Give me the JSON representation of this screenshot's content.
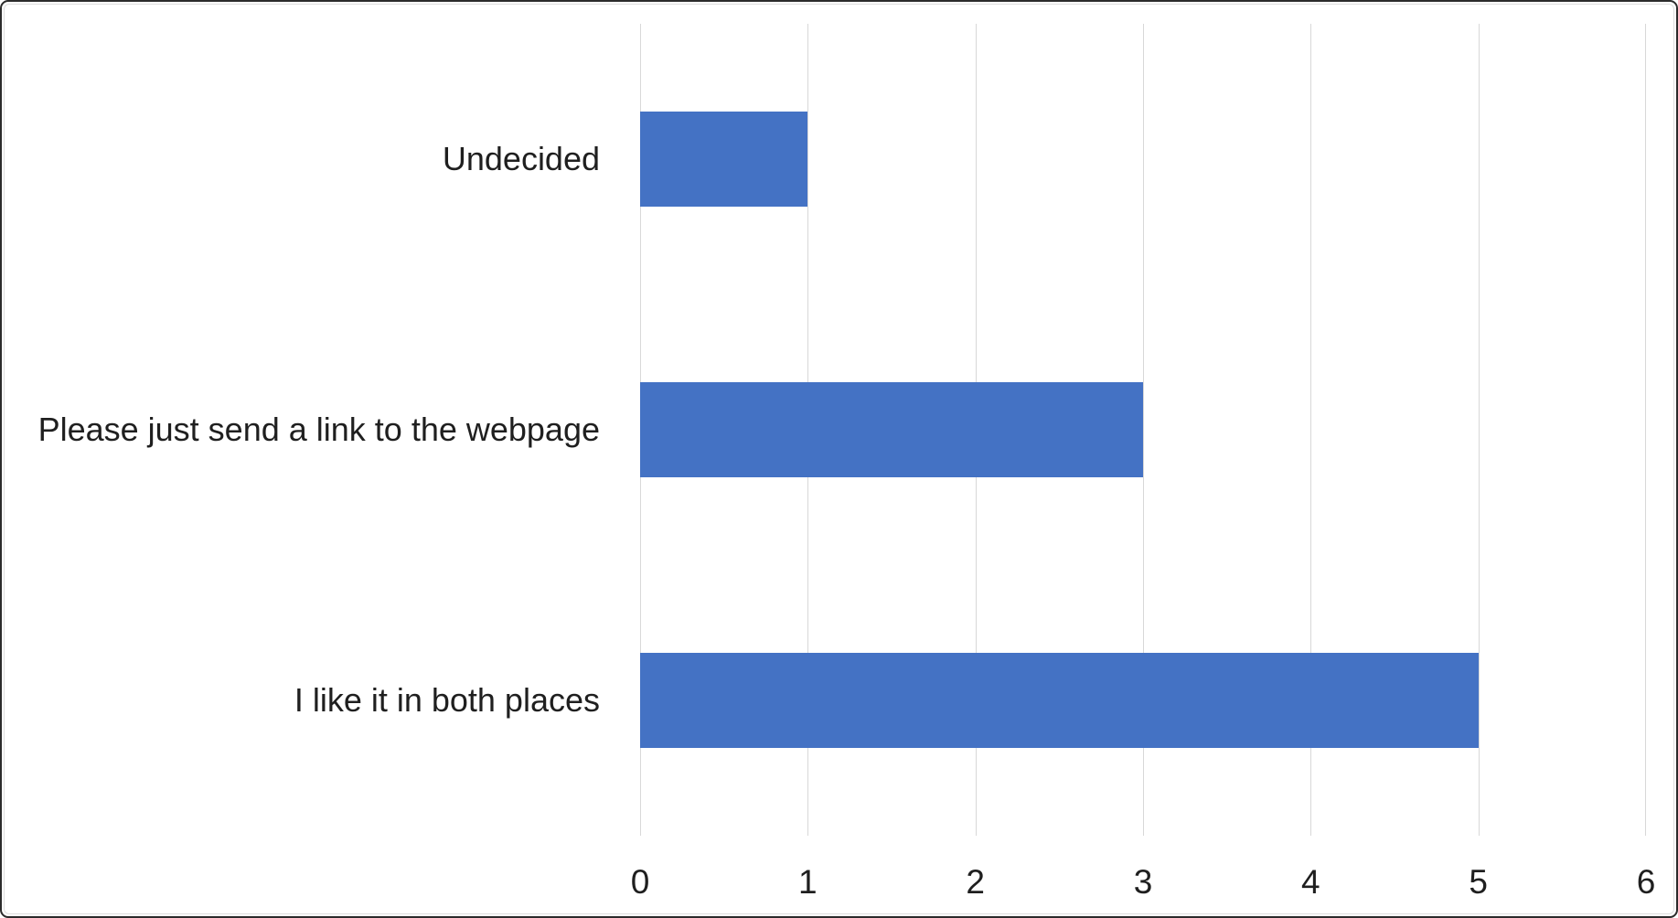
{
  "chart_data": {
    "type": "bar",
    "orientation": "horizontal",
    "title": "",
    "xlabel": "",
    "ylabel": "",
    "categories": [
      "Undecided",
      "Please just send a link to the webpage",
      "I like it in both places"
    ],
    "values": [
      1,
      3,
      5
    ],
    "xlim": [
      0,
      6
    ],
    "x_ticks": [
      "0",
      "1",
      "2",
      "3",
      "4",
      "5",
      "6"
    ],
    "grid": true,
    "legend": false,
    "bar_color": "#4472C4",
    "gridline_color": "#D8D8D8",
    "label_color": "#1F1F1F",
    "frame_color": "#2B2B2B",
    "background": "#FFFFFF"
  }
}
